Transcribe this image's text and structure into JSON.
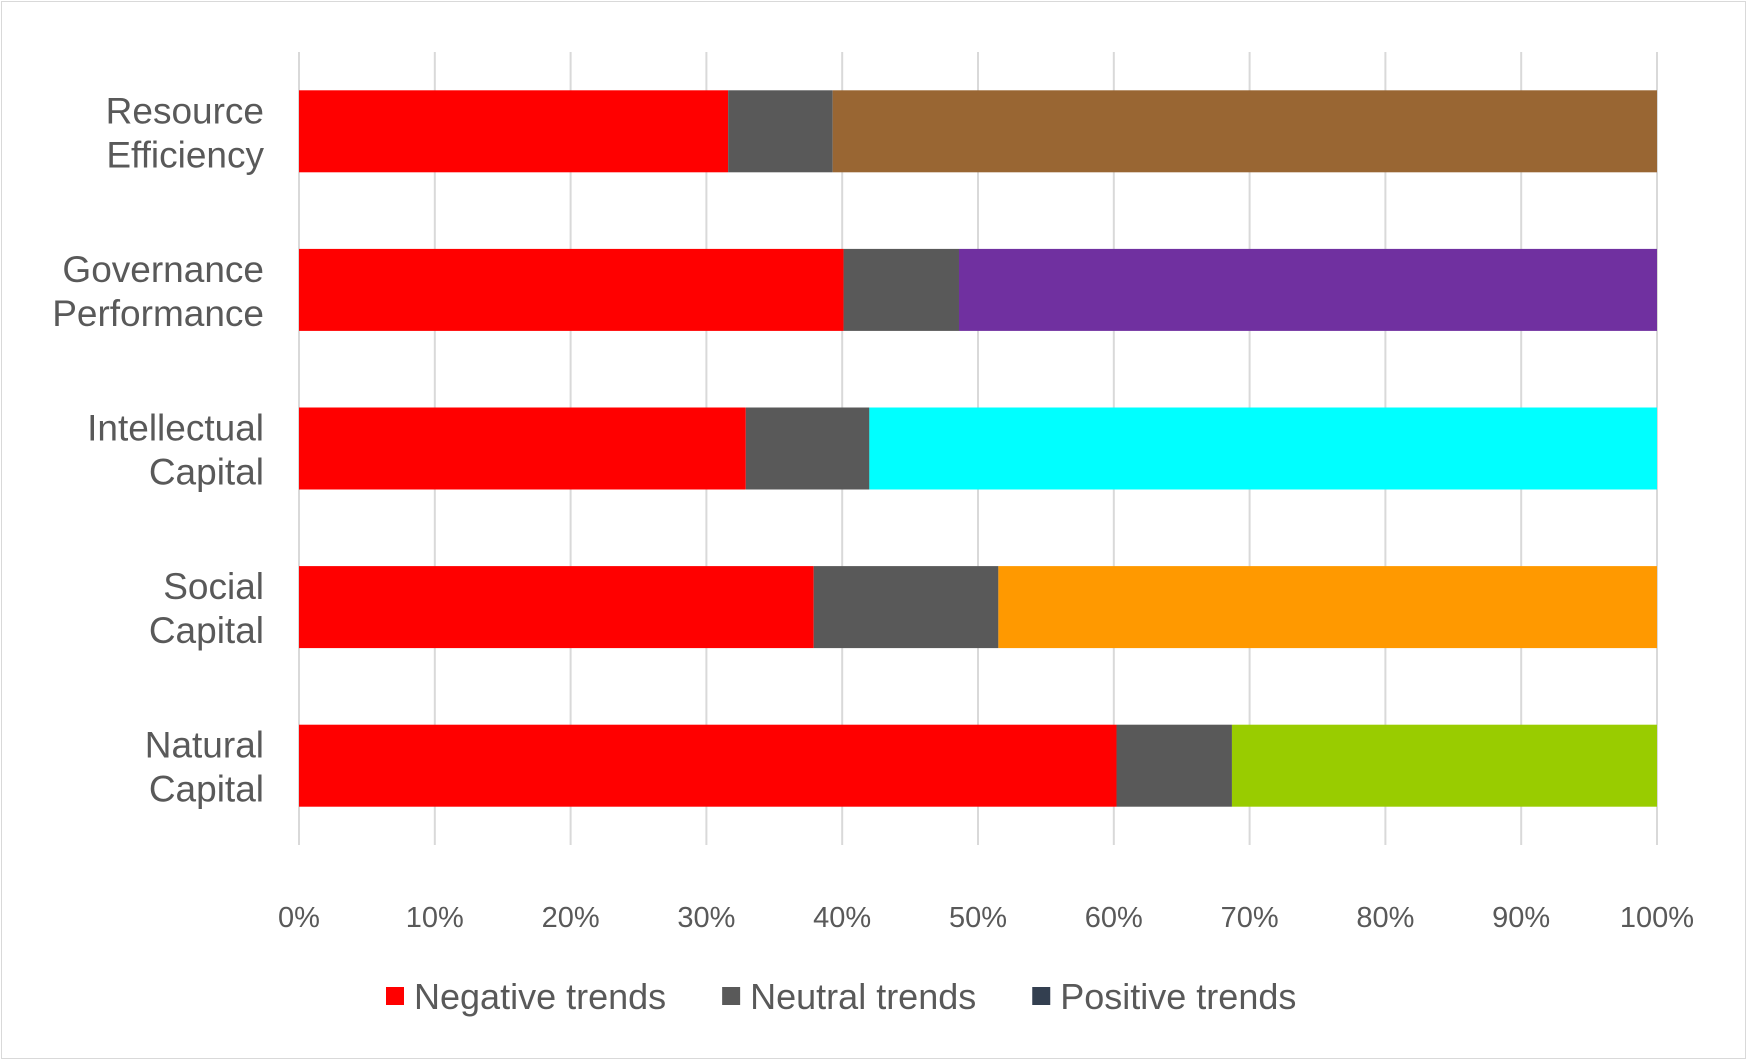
{
  "chart_data": {
    "type": "bar",
    "orientation": "horizontal",
    "stacked": "100%",
    "categories": [
      [
        "Resource",
        "Efficiency"
      ],
      [
        "Governance",
        "Performance"
      ],
      [
        "Intellectual",
        "Capital"
      ],
      [
        "Social",
        "Capital"
      ],
      [
        "Natural",
        "Capital"
      ]
    ],
    "series": [
      {
        "name": "Negative trends",
        "values": [
          31.6,
          40.1,
          32.9,
          37.9,
          60.2
        ],
        "color": "#ff0000"
      },
      {
        "name": "Neutral trends",
        "values": [
          7.7,
          8.5,
          9.1,
          13.6,
          8.5
        ],
        "color": "#595959"
      },
      {
        "name": "Positive trends",
        "values": [
          60.7,
          51.4,
          58.0,
          48.5,
          31.3
        ],
        "color": "#333f50",
        "bar_colors": [
          "#996633",
          "#7030a0",
          "#00ffff",
          "#ff9900",
          "#99cc00"
        ]
      }
    ],
    "xlim": [
      0,
      100
    ],
    "x_ticks": [
      "0%",
      "10%",
      "20%",
      "30%",
      "40%",
      "50%",
      "60%",
      "70%",
      "80%",
      "90%",
      "100%"
    ],
    "grid": "vertical",
    "legend": "bottom",
    "title": "",
    "xlabel": "",
    "ylabel": ""
  }
}
